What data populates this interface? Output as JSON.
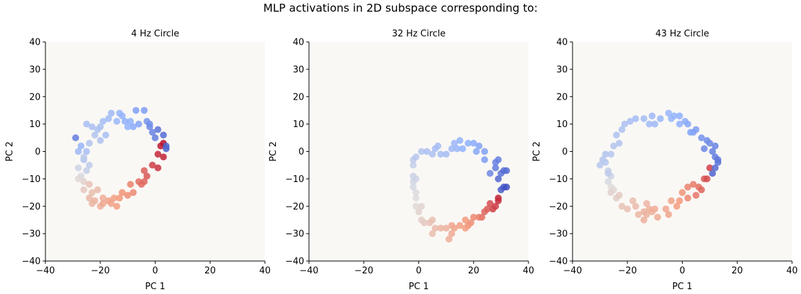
{
  "figure": {
    "suptitle": "MLP activations in 2D subspace corresponding to:"
  },
  "chart_data": [
    {
      "type": "scatter",
      "title": "4 Hz Circle",
      "xlabel": "PC 1",
      "ylabel": "PC 2",
      "xlim": [
        -40,
        40
      ],
      "ylim": [
        -40,
        40
      ],
      "xticks": [
        -40,
        -20,
        0,
        20,
        40
      ],
      "yticks": [
        -40,
        -30,
        -20,
        -10,
        0,
        10,
        20,
        30,
        40
      ],
      "colormap": "coolwarm",
      "points": [
        [
          -29,
          5,
          0.12
        ],
        [
          -28,
          0,
          0.3
        ],
        [
          -27,
          2,
          0.28
        ],
        [
          -26,
          -3,
          0.35
        ],
        [
          -25,
          0,
          0.33
        ],
        [
          -24,
          -5,
          0.4
        ],
        [
          -25,
          -7,
          0.42
        ],
        [
          -28,
          -6,
          0.45
        ],
        [
          -27,
          -9,
          0.48
        ],
        [
          -26,
          -11,
          0.55
        ],
        [
          -28,
          -10,
          0.52
        ],
        [
          -24,
          -12,
          0.6
        ],
        [
          -26,
          -14,
          0.58
        ],
        [
          -23,
          -15,
          0.62
        ],
        [
          -24,
          -17,
          0.64
        ],
        [
          -21,
          -14,
          0.63
        ],
        [
          -22,
          -18,
          0.66
        ],
        [
          -23,
          -19,
          0.65
        ],
        [
          -20,
          -20,
          0.67
        ],
        [
          -19,
          -17,
          0.68
        ],
        [
          -19,
          -19,
          0.7
        ],
        [
          -17,
          -18,
          0.72
        ],
        [
          -15,
          -17,
          0.73
        ],
        [
          -16,
          -19,
          0.72
        ],
        [
          -14,
          -20,
          0.74
        ],
        [
          -12,
          -15,
          0.76
        ],
        [
          -10,
          -16,
          0.77
        ],
        [
          -13,
          -17,
          0.75
        ],
        [
          -9,
          -12,
          0.79
        ],
        [
          -8,
          -15,
          0.78
        ],
        [
          -6,
          -11,
          0.82
        ],
        [
          -4,
          -11,
          0.84
        ],
        [
          -5,
          -12,
          0.83
        ],
        [
          -3,
          -9,
          0.86
        ],
        [
          -4,
          -7,
          0.85
        ],
        [
          -1,
          -5,
          0.9
        ],
        [
          1,
          -6,
          0.92
        ],
        [
          1,
          -1,
          0.94
        ],
        [
          3,
          -2,
          0.95
        ],
        [
          2,
          2,
          0.97
        ],
        [
          3,
          3,
          0.98
        ],
        [
          4,
          1,
          0.05
        ],
        [
          4,
          2,
          0.06
        ],
        [
          3,
          6,
          0.08
        ],
        [
          1,
          8,
          0.1
        ],
        [
          0,
          5,
          0.12
        ],
        [
          -1,
          7,
          0.14
        ],
        [
          -2,
          9,
          0.16
        ],
        [
          -3,
          11,
          0.18
        ],
        [
          -2,
          10,
          0.17
        ],
        [
          -4,
          15,
          0.2
        ],
        [
          -6,
          10,
          0.22
        ],
        [
          -7,
          15,
          0.21
        ],
        [
          -8,
          9,
          0.24
        ],
        [
          -9,
          11,
          0.26
        ],
        [
          -10,
          9,
          0.27
        ],
        [
          -11,
          11,
          0.26
        ],
        [
          -13,
          14,
          0.28
        ],
        [
          -14,
          11,
          0.29
        ],
        [
          -12,
          13,
          0.27
        ],
        [
          -16,
          14,
          0.3
        ],
        [
          -17,
          12,
          0.31
        ],
        [
          -19,
          11,
          0.32
        ],
        [
          -18,
          6,
          0.33
        ],
        [
          -20,
          9,
          0.34
        ],
        [
          -21,
          8,
          0.35
        ],
        [
          -22,
          6,
          0.36
        ],
        [
          -23,
          9,
          0.34
        ],
        [
          -20,
          4,
          0.35
        ],
        [
          -24,
          3,
          0.36
        ],
        [
          -25,
          10,
          0.33
        ],
        [
          -26,
          -2,
          0.4
        ]
      ]
    },
    {
      "type": "scatter",
      "title": "32 Hz Circle",
      "xlabel": "PC 1",
      "ylabel": "PC 2",
      "xlim": [
        -40,
        40
      ],
      "ylim": [
        -40,
        40
      ],
      "xticks": [
        -40,
        -20,
        0,
        20,
        40
      ],
      "yticks": [
        -40,
        -30,
        -20,
        -10,
        0,
        10,
        20,
        30,
        40
      ],
      "colormap": "coolwarm",
      "points": [
        [
          -2,
          -5,
          0.42
        ],
        [
          -2,
          -3,
          0.4
        ],
        [
          -1,
          -2,
          0.38
        ],
        [
          1,
          0,
          0.36
        ],
        [
          3,
          0,
          0.34
        ],
        [
          5,
          -1,
          0.35
        ],
        [
          6,
          1,
          0.33
        ],
        [
          7,
          2,
          0.32
        ],
        [
          8,
          -1,
          0.33
        ],
        [
          10,
          -1,
          0.32
        ],
        [
          12,
          1,
          0.3
        ],
        [
          13,
          3,
          0.29
        ],
        [
          14,
          1,
          0.28
        ],
        [
          15,
          4,
          0.27
        ],
        [
          16,
          1,
          0.26
        ],
        [
          18,
          3,
          0.25
        ],
        [
          20,
          3,
          0.24
        ],
        [
          21,
          0,
          0.23
        ],
        [
          22,
          2,
          0.22
        ],
        [
          24,
          0,
          0.21
        ],
        [
          24,
          -3,
          0.2
        ],
        [
          26,
          -8,
          0.15
        ],
        [
          28,
          -4,
          0.14
        ],
        [
          29,
          -3,
          0.13
        ],
        [
          28,
          -6,
          0.12
        ],
        [
          30,
          -8,
          0.1
        ],
        [
          31,
          -7,
          0.09
        ],
        [
          32,
          -7,
          0.08
        ],
        [
          29,
          -10,
          0.07
        ],
        [
          30,
          -14,
          0.04
        ],
        [
          31,
          -13,
          0.02
        ],
        [
          32,
          -13,
          0.01
        ],
        [
          29,
          -17,
          0.95
        ],
        [
          29,
          -18,
          0.93
        ],
        [
          28,
          -20,
          0.91
        ],
        [
          27,
          -21,
          0.9
        ],
        [
          26,
          -19,
          0.88
        ],
        [
          25,
          -21,
          0.86
        ],
        [
          24,
          -22,
          0.84
        ],
        [
          23,
          -24,
          0.82
        ],
        [
          22,
          -24,
          0.8
        ],
        [
          20,
          -24,
          0.78
        ],
        [
          19,
          -26,
          0.77
        ],
        [
          18,
          -27,
          0.76
        ],
        [
          17,
          -28,
          0.74
        ],
        [
          17,
          -25,
          0.75
        ],
        [
          15,
          -27,
          0.73
        ],
        [
          13,
          -28,
          0.71
        ],
        [
          12,
          -27,
          0.7
        ],
        [
          12,
          -30,
          0.69
        ],
        [
          11,
          -32,
          0.68
        ],
        [
          10,
          -28,
          0.66
        ],
        [
          8,
          -28,
          0.65
        ],
        [
          6,
          -28,
          0.63
        ],
        [
          5,
          -30,
          0.62
        ],
        [
          4,
          -26,
          0.6
        ],
        [
          5,
          -25,
          0.61
        ],
        [
          2,
          -26,
          0.58
        ],
        [
          1,
          -25,
          0.56
        ],
        [
          0,
          -22,
          0.54
        ],
        [
          1,
          -20,
          0.53
        ],
        [
          -1,
          -20,
          0.52
        ],
        [
          -1,
          -17,
          0.5
        ],
        [
          -1,
          -15,
          0.49
        ],
        [
          -2,
          -13,
          0.47
        ],
        [
          -2,
          -11,
          0.46
        ],
        [
          -1,
          -10,
          0.45
        ],
        [
          -2,
          -9,
          0.44
        ]
      ]
    },
    {
      "type": "scatter",
      "title": "43 Hz Circle",
      "xlabel": "PC 1",
      "ylabel": "PC 2",
      "xlim": [
        -40,
        40
      ],
      "ylim": [
        -40,
        40
      ],
      "xticks": [
        -40,
        -20,
        0,
        20,
        40
      ],
      "yticks": [
        -40,
        -30,
        -20,
        -10,
        0,
        10,
        20,
        30,
        40
      ],
      "colormap": "coolwarm",
      "points": [
        [
          -30,
          -5,
          0.38
        ],
        [
          -29,
          -3,
          0.37
        ],
        [
          -28,
          -1,
          0.36
        ],
        [
          -27,
          -7,
          0.42
        ],
        [
          -26,
          -9,
          0.45
        ],
        [
          -27,
          -11,
          0.48
        ],
        [
          -26,
          -13,
          0.5
        ],
        [
          -25,
          -14,
          0.52
        ],
        [
          -26,
          -15,
          0.54
        ],
        [
          -24,
          -17,
          0.56
        ],
        [
          -23,
          -16,
          0.57
        ],
        [
          -22,
          -20,
          0.6
        ],
        [
          -20,
          -21,
          0.61
        ],
        [
          -18,
          -18,
          0.62
        ],
        [
          -17,
          -20,
          0.63
        ],
        [
          -16,
          -23,
          0.64
        ],
        [
          -14,
          -22,
          0.66
        ],
        [
          -13,
          -19,
          0.65
        ],
        [
          -12,
          -21,
          0.67
        ],
        [
          -13,
          -23,
          0.66
        ],
        [
          -14,
          -25,
          0.67
        ],
        [
          -11,
          -22,
          0.68
        ],
        [
          -9,
          -24,
          0.69
        ],
        [
          -10,
          -21,
          0.68
        ],
        [
          -6,
          -21,
          0.7
        ],
        [
          -5,
          -23,
          0.71
        ],
        [
          -4,
          -18,
          0.72
        ],
        [
          -2,
          -20,
          0.74
        ],
        [
          -1,
          -18,
          0.75
        ],
        [
          0,
          -15,
          0.76
        ],
        [
          2,
          -17,
          0.78
        ],
        [
          2,
          -13,
          0.79
        ],
        [
          4,
          -12,
          0.8
        ],
        [
          5,
          -16,
          0.81
        ],
        [
          6,
          -13,
          0.82
        ],
        [
          7,
          -14,
          0.84
        ],
        [
          8,
          -10,
          0.86
        ],
        [
          9,
          -10,
          0.88
        ],
        [
          10,
          -6,
          0.9
        ],
        [
          11,
          -8,
          0.06
        ],
        [
          12,
          -6,
          0.08
        ],
        [
          13,
          -4,
          0.1
        ],
        [
          12,
          -2,
          0.12
        ],
        [
          13,
          -3,
          0.11
        ],
        [
          12,
          2,
          0.14
        ],
        [
          11,
          0,
          0.13
        ],
        [
          10,
          3,
          0.15
        ],
        [
          9,
          4,
          0.16
        ],
        [
          8,
          1,
          0.15
        ],
        [
          7,
          5,
          0.18
        ],
        [
          5,
          8,
          0.2
        ],
        [
          4,
          7,
          0.21
        ],
        [
          3,
          7,
          0.22
        ],
        [
          2,
          10,
          0.23
        ],
        [
          1,
          11,
          0.24
        ],
        [
          -1,
          13,
          0.25
        ],
        [
          -1,
          10,
          0.26
        ],
        [
          -3,
          13,
          0.27
        ],
        [
          -4,
          12,
          0.28
        ],
        [
          -5,
          14,
          0.28
        ],
        [
          -8,
          12,
          0.29
        ],
        [
          -10,
          10,
          0.3
        ],
        [
          -11,
          13,
          0.3
        ],
        [
          -12,
          10,
          0.31
        ],
        [
          -14,
          12,
          0.32
        ],
        [
          -17,
          12,
          0.32
        ],
        [
          -19,
          11,
          0.33
        ],
        [
          -21,
          10,
          0.34
        ],
        [
          -22,
          8,
          0.35
        ],
        [
          -23,
          3,
          0.36
        ],
        [
          -24,
          6,
          0.35
        ],
        [
          -25,
          2,
          0.36
        ],
        [
          -26,
          -1,
          0.37
        ],
        [
          -28,
          -4,
          0.38
        ],
        [
          -27,
          -8,
          0.4
        ]
      ]
    }
  ]
}
